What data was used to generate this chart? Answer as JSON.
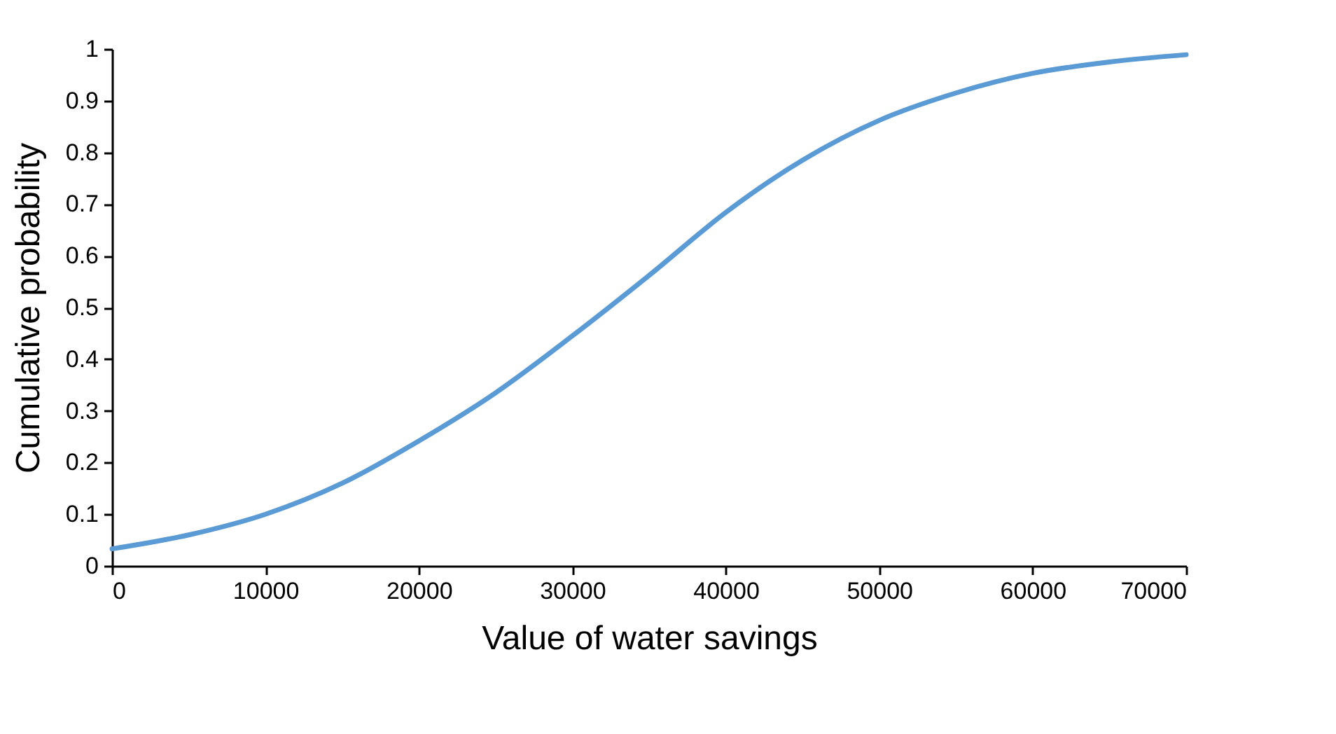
{
  "chart_data": {
    "type": "line",
    "xlabel": "Value of water savings",
    "ylabel": "Cumulative probability",
    "x": [
      0,
      5000,
      10000,
      15000,
      20000,
      25000,
      30000,
      35000,
      40000,
      45000,
      50000,
      55000,
      60000,
      65000,
      70000
    ],
    "series": [
      {
        "color": "#5b9bd5",
        "values": [
          0.033,
          0.06,
          0.1,
          0.16,
          0.242,
          0.335,
          0.445,
          0.562,
          0.684,
          0.785,
          0.862,
          0.915,
          0.953,
          0.975,
          0.989
        ]
      }
    ],
    "xlim": [
      0,
      70000
    ],
    "xticks": [
      0,
      10000,
      20000,
      30000,
      40000,
      50000,
      60000,
      70000
    ],
    "ylim": [
      0,
      1
    ],
    "yticks": [
      0,
      0.1,
      0.2,
      0.3,
      0.4,
      0.5,
      0.6,
      0.7,
      0.8,
      0.9,
      1
    ],
    "grid": false,
    "marker": "none",
    "line_style": "solid"
  }
}
